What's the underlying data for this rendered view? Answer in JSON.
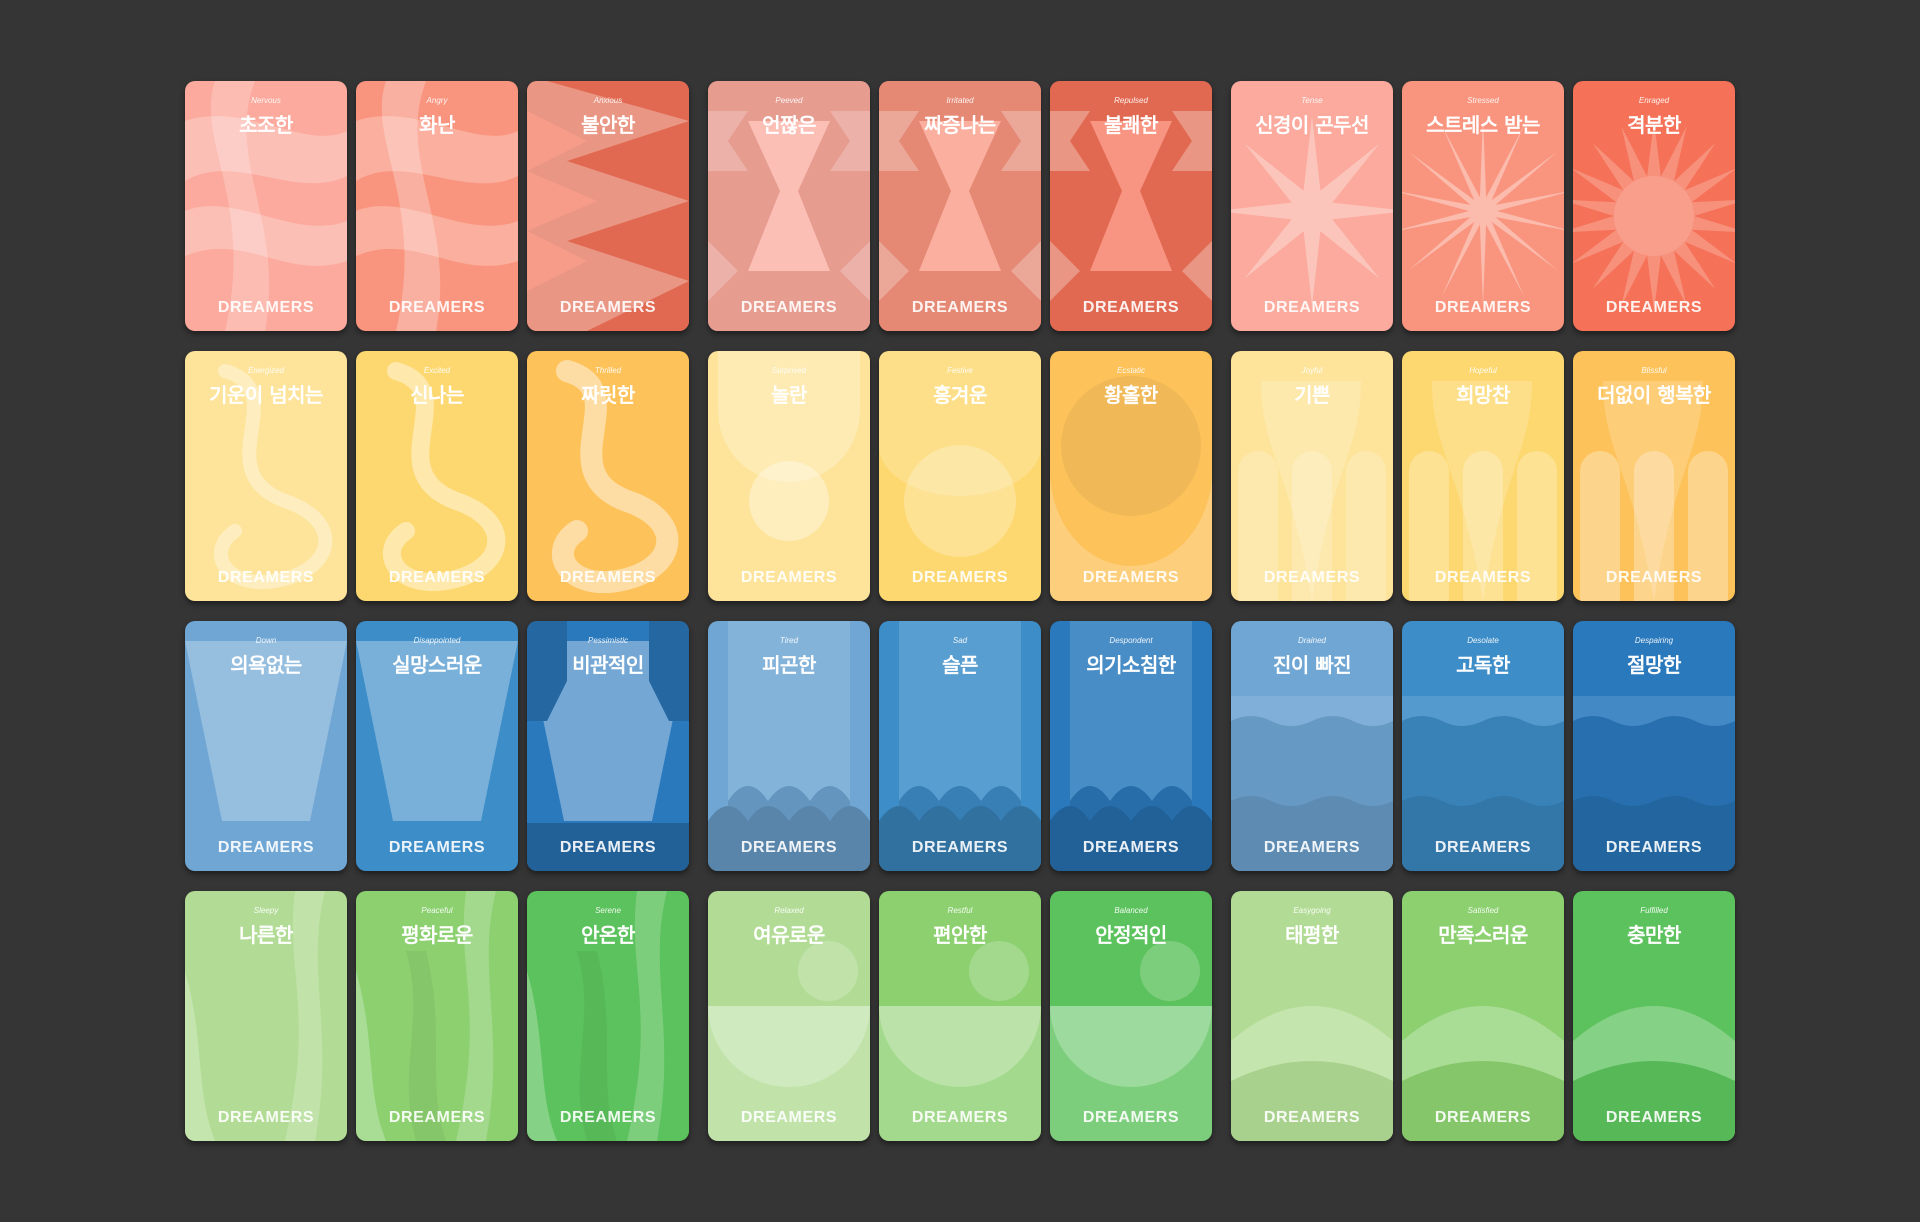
{
  "brand": "DREAMERS",
  "colors": {
    "background": "#353535",
    "red": [
      "#fbaa9d",
      "#f9957f",
      "#f57258"
    ],
    "yellow": [
      "#fde49a",
      "#fdd870",
      "#fdc25a"
    ],
    "blue": [
      "#6fa6d4",
      "#3d8dc8",
      "#2a79bd"
    ],
    "green": [
      "#b2dc95",
      "#8cd070",
      "#5cc25d"
    ]
  },
  "rows": [
    {
      "family": "red",
      "cards": [
        {
          "en": "Nervous",
          "ko": "초조한",
          "pattern": "wave-ribbon"
        },
        {
          "en": "Angry",
          "ko": "화난",
          "pattern": "wave-ribbon"
        },
        {
          "en": "Anxious",
          "ko": "불안한",
          "pattern": "zigzag"
        },
        {
          "en": "Peeved",
          "ko": "언짢은",
          "pattern": "hourglass"
        },
        {
          "en": "Irritated",
          "ko": "짜증나는",
          "pattern": "hourglass"
        },
        {
          "en": "Repulsed",
          "ko": "불쾌한",
          "pattern": "hourglass"
        },
        {
          "en": "Tense",
          "ko": "신경이 곤두선",
          "pattern": "star"
        },
        {
          "en": "Stressed",
          "ko": "스트레스 받는",
          "pattern": "star"
        },
        {
          "en": "Enraged",
          "ko": "격분한",
          "pattern": "burst"
        }
      ]
    },
    {
      "family": "yellow",
      "cards": [
        {
          "en": "Energized",
          "ko": "기운이 넘치는",
          "pattern": "swirl"
        },
        {
          "en": "Excited",
          "ko": "신나는",
          "pattern": "swirl"
        },
        {
          "en": "Thrilled",
          "ko": "짜릿한",
          "pattern": "swirl"
        },
        {
          "en": "Surprised",
          "ko": "놀란",
          "pattern": "circle"
        },
        {
          "en": "Festive",
          "ko": "흥겨운",
          "pattern": "circle"
        },
        {
          "en": "Ecstatic",
          "ko": "황홀한",
          "pattern": "circle"
        },
        {
          "en": "Joyful",
          "ko": "기쁜",
          "pattern": "arches"
        },
        {
          "en": "Hopeful",
          "ko": "희망찬",
          "pattern": "arches"
        },
        {
          "en": "Blissful",
          "ko": "더없이 행복한",
          "pattern": "arches"
        }
      ]
    },
    {
      "family": "blue",
      "cards": [
        {
          "en": "Down",
          "ko": "의욕없는",
          "pattern": "funnel"
        },
        {
          "en": "Disappointed",
          "ko": "실망스러운",
          "pattern": "funnel"
        },
        {
          "en": "Pessimistic",
          "ko": "비관적인",
          "pattern": "funnel"
        },
        {
          "en": "Tired",
          "ko": "피곤한",
          "pattern": "drip"
        },
        {
          "en": "Sad",
          "ko": "슬픈",
          "pattern": "drip"
        },
        {
          "en": "Despondent",
          "ko": "의기소침한",
          "pattern": "drip"
        },
        {
          "en": "Drained",
          "ko": "진이 빠진",
          "pattern": "sea"
        },
        {
          "en": "Desolate",
          "ko": "고독한",
          "pattern": "sea"
        },
        {
          "en": "Despairing",
          "ko": "절망한",
          "pattern": "sea"
        }
      ]
    },
    {
      "family": "green",
      "cards": [
        {
          "en": "Sleepy",
          "ko": "나른한",
          "pattern": "grass"
        },
        {
          "en": "Peaceful",
          "ko": "평화로운",
          "pattern": "grass"
        },
        {
          "en": "Serene",
          "ko": "안온한",
          "pattern": "grass"
        },
        {
          "en": "Relaxed",
          "ko": "여유로운",
          "pattern": "halfmoon"
        },
        {
          "en": "Restful",
          "ko": "편안한",
          "pattern": "halfmoon"
        },
        {
          "en": "Balanced",
          "ko": "안정적인",
          "pattern": "halfmoon"
        },
        {
          "en": "Easygoing",
          "ko": "태평한",
          "pattern": "hills"
        },
        {
          "en": "Satisfied",
          "ko": "만족스러운",
          "pattern": "hills"
        },
        {
          "en": "Fulfilled",
          "ko": "충만한",
          "pattern": "hills"
        }
      ]
    }
  ]
}
